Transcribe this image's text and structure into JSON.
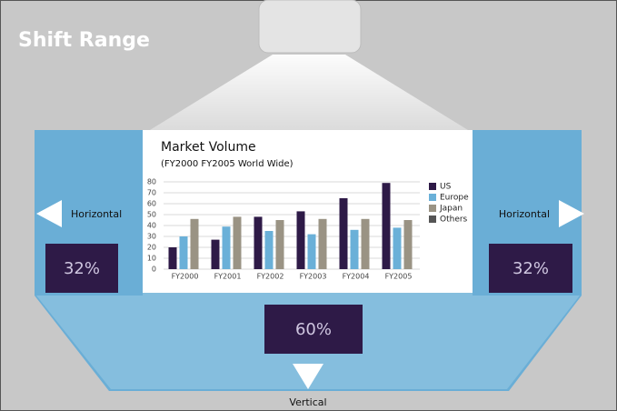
{
  "header": {
    "title": "Shift Range"
  },
  "left": {
    "label": "Horizontal",
    "percent": "32%"
  },
  "right": {
    "label": "Horizontal",
    "percent": "32%"
  },
  "bottom": {
    "label": "Vertical",
    "percent": "60%"
  },
  "chart_data": {
    "type": "bar",
    "title": "Market Volume",
    "subtitle": "(FY2000 FY2005 World Wide)",
    "categories": [
      "FY2000",
      "FY2001",
      "FY2002",
      "FY2003",
      "FY2004",
      "FY2005"
    ],
    "series": [
      {
        "name": "US",
        "color": "#2e1a47",
        "values": [
          20,
          27,
          48,
          53,
          65,
          79
        ]
      },
      {
        "name": "Europe",
        "color": "#6ab0d8",
        "values": [
          30,
          39,
          35,
          32,
          36,
          38
        ]
      },
      {
        "name": "Japan",
        "color": "#9a9384",
        "values": [
          46,
          48,
          45,
          46,
          46,
          45
        ]
      },
      {
        "name": "Others",
        "color": "#555555",
        "values": [
          null,
          null,
          null,
          null,
          null,
          null
        ]
      }
    ],
    "ylim": [
      0,
      80
    ],
    "yticks": [
      0,
      10,
      20,
      30,
      40,
      50,
      60,
      70,
      80
    ],
    "grid": true
  }
}
